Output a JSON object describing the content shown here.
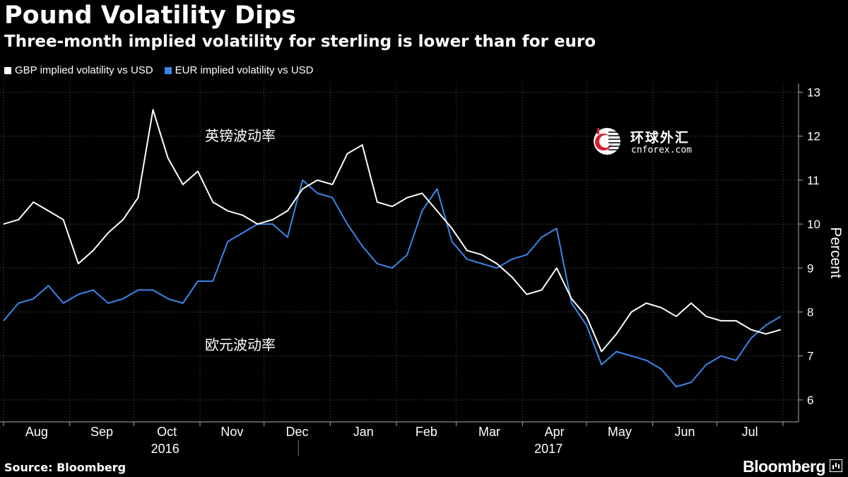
{
  "header": {
    "title": "Pound Volatility Dips",
    "subtitle": "Three-month implied volatility for sterling is lower than for euro"
  },
  "legend": [
    {
      "label": "GBP implied volatility vs USD",
      "color": "#ffffff"
    },
    {
      "label": "EUR implied volatility vs USD",
      "color": "#3a86e8"
    }
  ],
  "annotations": {
    "gbp_cn": "英镑波动率",
    "eur_cn": "欧元波动率"
  },
  "watermark": {
    "cn": "环球外汇",
    "en": "cnforex.com"
  },
  "footer": {
    "source": "Source: Bloomberg",
    "brand": "Bloomberg"
  },
  "chart_data": {
    "type": "line",
    "ylabel": "Percent",
    "ylim": [
      5.5,
      13.2
    ],
    "yticks": [
      6,
      7,
      8,
      9,
      10,
      11,
      12,
      13
    ],
    "x_months": [
      "Aug",
      "Sep",
      "Oct",
      "Nov",
      "Dec",
      "Jan",
      "Feb",
      "Mar",
      "Apr",
      "May",
      "Jun",
      "Jul"
    ],
    "x_years": [
      "2016",
      "2017"
    ],
    "grid": true,
    "legend_position": "top-left",
    "x": [
      "2016-08-01",
      "2016-08-08",
      "2016-08-15",
      "2016-08-22",
      "2016-08-29",
      "2016-09-05",
      "2016-09-12",
      "2016-09-19",
      "2016-09-26",
      "2016-10-03",
      "2016-10-10",
      "2016-10-17",
      "2016-10-24",
      "2016-10-31",
      "2016-11-07",
      "2016-11-14",
      "2016-11-21",
      "2016-11-28",
      "2016-12-05",
      "2016-12-12",
      "2016-12-19",
      "2016-12-26",
      "2017-01-02",
      "2017-01-09",
      "2017-01-16",
      "2017-01-23",
      "2017-01-30",
      "2017-02-06",
      "2017-02-13",
      "2017-02-20",
      "2017-02-27",
      "2017-03-06",
      "2017-03-13",
      "2017-03-20",
      "2017-03-27",
      "2017-04-03",
      "2017-04-10",
      "2017-04-17",
      "2017-04-24",
      "2017-05-01",
      "2017-05-08",
      "2017-05-15",
      "2017-05-22",
      "2017-05-29",
      "2017-06-05",
      "2017-06-12",
      "2017-06-19",
      "2017-06-26",
      "2017-07-03",
      "2017-07-10",
      "2017-07-17",
      "2017-07-24",
      "2017-07-31"
    ],
    "series": [
      {
        "name": "GBP implied volatility vs USD",
        "color": "#ffffff",
        "values": [
          10.0,
          10.1,
          10.5,
          10.3,
          10.1,
          9.1,
          9.4,
          9.8,
          10.1,
          10.6,
          12.6,
          11.5,
          10.9,
          11.2,
          10.5,
          10.3,
          10.2,
          10.0,
          10.1,
          10.3,
          10.8,
          11.0,
          10.9,
          11.6,
          11.8,
          10.5,
          10.4,
          10.6,
          10.7,
          10.3,
          9.9,
          9.4,
          9.3,
          9.1,
          8.8,
          8.4,
          8.5,
          9.0,
          8.3,
          7.9,
          7.1,
          7.5,
          8.0,
          8.2,
          8.1,
          7.9,
          8.2,
          7.9,
          7.8,
          7.8,
          7.6,
          7.5,
          7.6
        ]
      },
      {
        "name": "EUR implied volatility vs USD",
        "color": "#3a86e8",
        "values": [
          7.8,
          8.2,
          8.3,
          8.6,
          8.2,
          8.4,
          8.5,
          8.2,
          8.3,
          8.5,
          8.5,
          8.3,
          8.2,
          8.7,
          8.7,
          9.6,
          9.8,
          10.0,
          10.0,
          9.7,
          11.0,
          10.7,
          10.6,
          10.0,
          9.5,
          9.1,
          9.0,
          9.3,
          10.3,
          10.8,
          9.6,
          9.2,
          9.1,
          9.0,
          9.2,
          9.3,
          9.7,
          9.9,
          8.2,
          7.7,
          6.8,
          7.1,
          7.0,
          6.9,
          6.7,
          6.3,
          6.4,
          6.8,
          7.0,
          6.9,
          7.4,
          7.7,
          7.9
        ]
      }
    ]
  }
}
